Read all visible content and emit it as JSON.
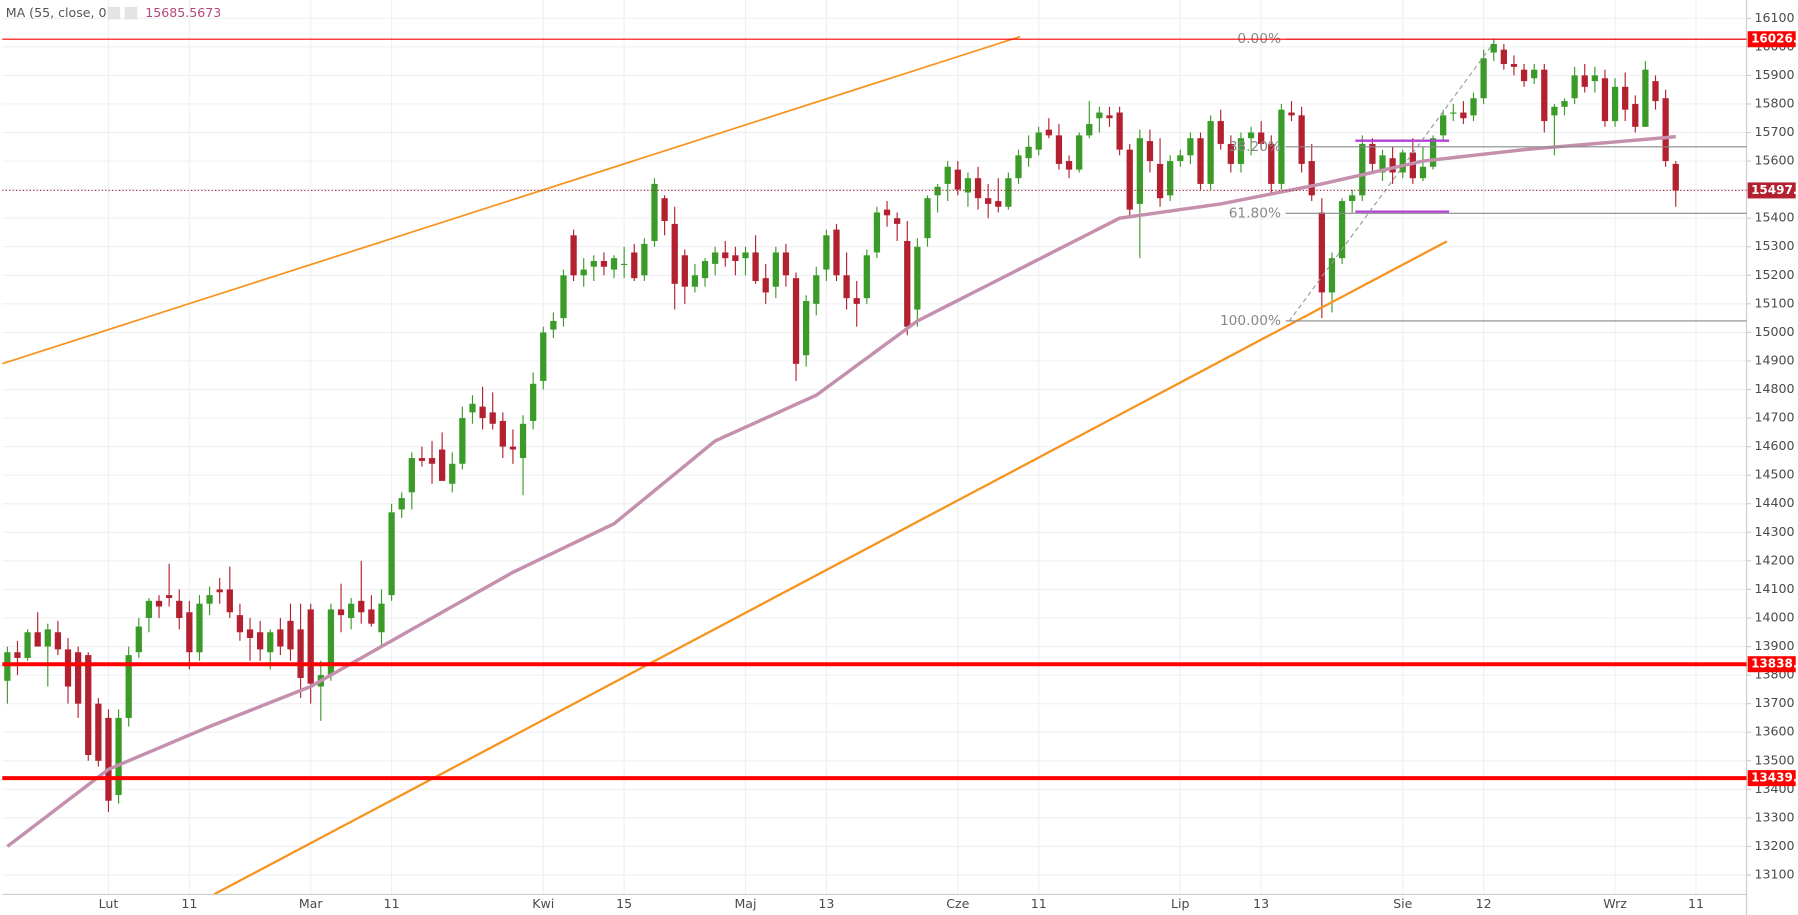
{
  "chart_data": {
    "type": "candlestick",
    "up_color": "#3b9b28",
    "down_color": "#b3202f",
    "indicator": {
      "name": "MA (55, close, 0)",
      "color": "#c58fae",
      "values": [
        13200,
        13227,
        13254,
        13281,
        13308,
        13335,
        13362,
        13389,
        13416,
        13443,
        13470,
        13485,
        13500,
        13515,
        13530,
        13545,
        13560,
        13575,
        13590,
        13605,
        13620,
        13634,
        13648,
        13662,
        13676,
        13690,
        13704,
        13718,
        13732,
        13746,
        13760,
        13780,
        13800,
        13820,
        13840,
        13860,
        13880,
        13900,
        13920,
        13940,
        13960,
        13980,
        14000,
        14020,
        14040,
        14060,
        14080,
        14100,
        14120,
        14140,
        14160,
        14177,
        14194,
        14211,
        14228,
        14245,
        14262,
        14279,
        14296,
        14313,
        14330,
        14359,
        14388,
        14417,
        14446,
        14475,
        14504,
        14533,
        14562,
        14591,
        14620,
        14636,
        14652,
        14668,
        14684,
        14700,
        14716,
        14732,
        14748,
        14764,
        14780,
        14806,
        14832,
        14858,
        14884,
        14910,
        14936,
        14962,
        14988,
        15014,
        15040,
        15058,
        15076,
        15094,
        15112,
        15130,
        15148,
        15166,
        15184,
        15202,
        15220,
        15238,
        15256,
        15274,
        15292,
        15310,
        15328,
        15346,
        15364,
        15382,
        15400,
        15405,
        15410,
        15415,
        15420,
        15425,
        15430,
        15435,
        15440,
        15445,
        15450,
        15457,
        15464,
        15471,
        15478,
        15485,
        15492,
        15499,
        15506,
        15513,
        15520,
        15528,
        15536,
        15544,
        15552,
        15560,
        15568,
        15576,
        15584,
        15592,
        15600,
        15604,
        15608,
        15612,
        15616,
        15620,
        15624,
        15628,
        15632,
        15636,
        15640,
        15643,
        15646,
        15649,
        15652,
        15655,
        15658,
        15661,
        15664,
        15667,
        15670,
        15673,
        15676,
        15679,
        15682,
        15685.5673
      ]
    },
    "open": [
      13780,
      13880,
      13860,
      13950,
      13900,
      13950,
      13890,
      13880,
      13870,
      13700,
      13650,
      13380,
      13650,
      13880,
      14000,
      14060,
      14080,
      14060,
      14020,
      13880,
      14050,
      14100,
      14100,
      14010,
      13960,
      13950,
      13880,
      13960,
      13990,
      13960,
      14030,
      13760,
      13800,
      14030,
      14000,
      14060,
      14030,
      13950,
      14080,
      14380,
      14440,
      14560,
      14560,
      14590,
      14470,
      14540,
      14720,
      14740,
      14720,
      14690,
      14600,
      14560,
      14690,
      14830,
      15010,
      15050,
      15340,
      15200,
      15230,
      15250,
      15220,
      15240,
      15280,
      15200,
      15320,
      15470,
      15380,
      15270,
      15160,
      15190,
      15240,
      15280,
      15270,
      15260,
      15280,
      15190,
      15160,
      15280,
      15190,
      14920,
      15100,
      15220,
      15360,
      15200,
      15120,
      15120,
      15280,
      15430,
      15400,
      15320,
      15080,
      15330,
      15480,
      15520,
      15570,
      15490,
      15540,
      15470,
      15460,
      15440,
      15540,
      15610,
      15640,
      15710,
      15690,
      15600,
      15570,
      15690,
      15750,
      15760,
      15770,
      15640,
      15450,
      15670,
      15590,
      15480,
      15600,
      15620,
      15680,
      15520,
      15740,
      15660,
      15590,
      15680,
      15700,
      15660,
      15520,
      15770,
      15760,
      15600,
      15420,
      15140,
      15260,
      15460,
      15480,
      15660,
      15560,
      15610,
      15560,
      15630,
      15540,
      15580,
      15690,
      15770,
      15770,
      15760,
      15820,
      15980,
      15990,
      15940,
      15920,
      15890,
      15920,
      15760,
      15790,
      15820,
      15900,
      15880,
      15890,
      15740,
      15860,
      15800,
      15720,
      15880,
      15820,
      15590
    ],
    "high": [
      13900,
      13920,
      13960,
      14020,
      13980,
      13990,
      13930,
      13900,
      13880,
      13720,
      13680,
      13680,
      13900,
      14000,
      14070,
      14080,
      14190,
      14100,
      14060,
      14080,
      14110,
      14140,
      14180,
      14050,
      14000,
      13990,
      13960,
      14000,
      14050,
      14050,
      14050,
      13850,
      14050,
      14120,
      14070,
      14200,
      14080,
      14100,
      14400,
      14440,
      14580,
      14600,
      14620,
      14650,
      14580,
      14740,
      14780,
      14810,
      14790,
      14720,
      14660,
      14710,
      14860,
      15020,
      15070,
      15220,
      15360,
      15260,
      15270,
      15280,
      15270,
      15300,
      15310,
      15330,
      15540,
      15480,
      15440,
      15290,
      15240,
      15260,
      15300,
      15320,
      15300,
      15300,
      15340,
      15240,
      15300,
      15310,
      15210,
      15130,
      15230,
      15360,
      15380,
      15280,
      15180,
      15290,
      15440,
      15460,
      15420,
      15390,
      15330,
      15480,
      15520,
      15600,
      15600,
      15560,
      15580,
      15520,
      15540,
      15560,
      15640,
      15690,
      15720,
      15750,
      15730,
      15620,
      15700,
      15810,
      15790,
      15790,
      15790,
      15660,
      15710,
      15710,
      15680,
      15620,
      15640,
      15700,
      15700,
      15760,
      15780,
      15690,
      15700,
      15720,
      15740,
      15690,
      15800,
      15810,
      15790,
      15660,
      15470,
      15280,
      15470,
      15500,
      15690,
      15680,
      15640,
      15650,
      15640,
      15680,
      15650,
      15690,
      15780,
      15800,
      15810,
      15840,
      15990,
      16030,
      16010,
      15970,
      15940,
      15940,
      15940,
      15800,
      15820,
      15930,
      15940,
      15930,
      15920,
      15890,
      15910,
      15830,
      15950,
      15900,
      15850,
      15600
    ],
    "low": [
      13700,
      13800,
      13850,
      13900,
      13760,
      13870,
      13700,
      13650,
      13500,
      13480,
      13320,
      13350,
      13620,
      13860,
      13950,
      14000,
      14040,
      13960,
      13820,
      13850,
      14010,
      14050,
      14000,
      13920,
      13850,
      13850,
      13820,
      13870,
      13850,
      13720,
      13700,
      13640,
      13780,
      13950,
      13960,
      13980,
      13970,
      13900,
      14060,
      14350,
      14380,
      14530,
      14470,
      14500,
      14440,
      14520,
      14680,
      14660,
      14660,
      14560,
      14540,
      14430,
      14660,
      14800,
      14980,
      15020,
      15180,
      15160,
      15180,
      15200,
      15190,
      15190,
      15180,
      15180,
      15300,
      15340,
      15080,
      15100,
      15140,
      15160,
      15200,
      15230,
      15200,
      15200,
      15170,
      15100,
      15120,
      15160,
      14830,
      14880,
      15060,
      15180,
      15180,
      15080,
      15020,
      15100,
      15260,
      15370,
      15320,
      14990,
      15020,
      15300,
      15420,
      15460,
      15480,
      15440,
      15430,
      15400,
      15420,
      15430,
      15520,
      15580,
      15620,
      15680,
      15570,
      15540,
      15560,
      15680,
      15700,
      15720,
      15620,
      15410,
      15260,
      15560,
      15440,
      15460,
      15580,
      15590,
      15500,
      15500,
      15640,
      15560,
      15560,
      15620,
      15640,
      15480,
      15500,
      15740,
      15560,
      15460,
      15050,
      15070,
      15240,
      15420,
      15460,
      15560,
      15530,
      15520,
      15540,
      15520,
      15530,
      15570,
      15670,
      15740,
      15730,
      15740,
      15800,
      15950,
      15920,
      15900,
      15860,
      15870,
      15700,
      15620,
      15760,
      15800,
      15840,
      15840,
      15720,
      15720,
      15740,
      15700,
      15720,
      15780,
      15580,
      15440
    ],
    "close": [
      13880,
      13860,
      13950,
      13900,
      13960,
      13890,
      13760,
      13700,
      13520,
      13500,
      13360,
      13650,
      13870,
      13970,
      14060,
      14040,
      14070,
      14000,
      13880,
      14050,
      14080,
      14090,
      14020,
      13950,
      13930,
      13890,
      13950,
      13900,
      13890,
      13790,
      13770,
      13800,
      14030,
      14010,
      14050,
      14020,
      13980,
      14050,
      14370,
      14420,
      14560,
      14550,
      14540,
      14480,
      14540,
      14700,
      14750,
      14700,
      14680,
      14600,
      14590,
      14680,
      14820,
      15000,
      15040,
      15200,
      15200,
      15220,
      15250,
      15230,
      15260,
      15240,
      15190,
      15310,
      15520,
      15390,
      15170,
      15160,
      15200,
      15250,
      15280,
      15260,
      15250,
      15280,
      15180,
      15140,
      15280,
      15200,
      14890,
      15110,
      15200,
      15340,
      15200,
      15120,
      15100,
      15270,
      15420,
      15410,
      15380,
      15020,
      15300,
      15470,
      15510,
      15580,
      15500,
      15540,
      15470,
      15450,
      15440,
      15540,
      15620,
      15650,
      15700,
      15690,
      15590,
      15570,
      15690,
      15730,
      15770,
      15750,
      15640,
      15430,
      15680,
      15600,
      15470,
      15600,
      15620,
      15680,
      15520,
      15740,
      15660,
      15590,
      15680,
      15700,
      15660,
      15520,
      15780,
      15760,
      15590,
      15480,
      15140,
      15260,
      15460,
      15480,
      15660,
      15590,
      15620,
      15560,
      15630,
      15540,
      15580,
      15680,
      15760,
      15770,
      15750,
      15820,
      15960,
      16010,
      15940,
      15930,
      15880,
      15920,
      15740,
      15790,
      15810,
      15900,
      15860,
      15900,
      15740,
      15860,
      15780,
      15720,
      15920,
      15810,
      15600,
      15497.2
    ],
    "ylim": [
      13032,
      16164
    ],
    "yticks": [
      13100,
      13200,
      13300,
      13400,
      13500,
      13600,
      13700,
      13800,
      13900,
      14000,
      14100,
      14200,
      14300,
      14400,
      14500,
      14600,
      14700,
      14800,
      14900,
      15000,
      15100,
      15200,
      15300,
      15400,
      15500,
      15600,
      15700,
      15800,
      15900,
      16000,
      16100
    ],
    "xlim": [
      -0.5,
      172
    ],
    "xticks": [
      {
        "value": 10,
        "label": "Lut"
      },
      {
        "value": 18,
        "label": "11"
      },
      {
        "value": 30,
        "label": "Mar"
      },
      {
        "value": 38,
        "label": "11"
      },
      {
        "value": 53,
        "label": "Kwi"
      },
      {
        "value": 61,
        "label": "15"
      },
      {
        "value": 73,
        "label": "Maj"
      },
      {
        "value": 81,
        "label": "13"
      },
      {
        "value": 94,
        "label": "Cze"
      },
      {
        "value": 102,
        "label": "11"
      },
      {
        "value": 116,
        "label": "Lip"
      },
      {
        "value": 124,
        "label": "13"
      },
      {
        "value": 138,
        "label": "Sie"
      },
      {
        "value": 146,
        "label": "12"
      },
      {
        "value": 159,
        "label": "Wrz"
      },
      {
        "value": 167,
        "label": "11"
      }
    ],
    "grid": true,
    "levels": [
      {
        "value": 16026.7,
        "color": "#ff0000",
        "style": "solid"
      },
      {
        "value": 15497.2,
        "color": "#b3202f",
        "style": "dotted"
      },
      {
        "value": 13838.1,
        "color": "#ff0000",
        "style": "thick"
      },
      {
        "value": 13439.2,
        "color": "#ff0000",
        "style": "thick"
      }
    ],
    "fib": [
      {
        "value": 16026.7,
        "label": "0.00%"
      },
      {
        "value": 15649.8,
        "label": "38.20%"
      },
      {
        "value": 15416.9,
        "label": "61.80%"
      },
      {
        "value": 15040,
        "label": "100.00%"
      }
    ]
  }
}
